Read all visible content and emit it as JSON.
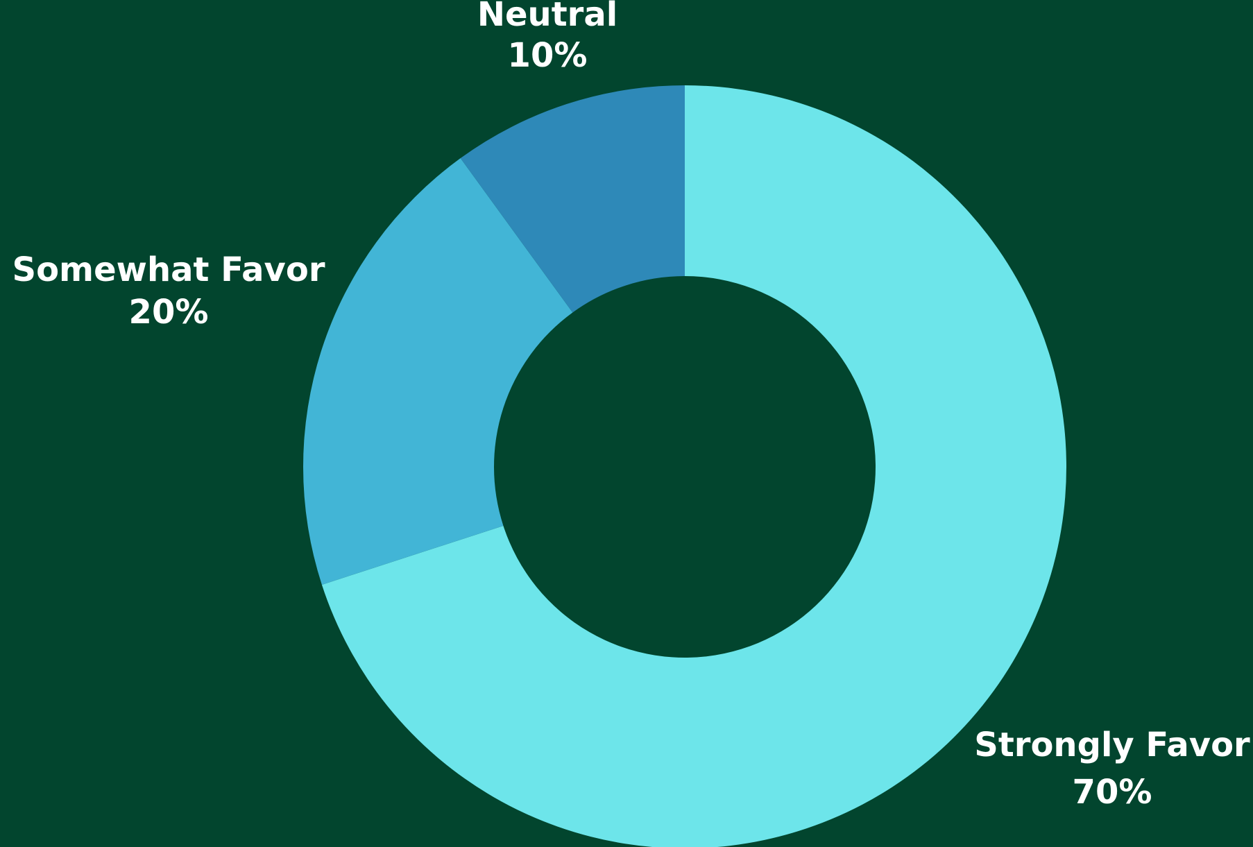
{
  "chart_data": {
    "type": "pie",
    "donut": true,
    "start_angle": "top",
    "direction": "clockwise",
    "background_color": "#02452e",
    "slices": [
      {
        "label": "Strongly Favor",
        "value": 70,
        "value_label": "70%",
        "color": "#6de5ea"
      },
      {
        "label": "Somewhat Favor",
        "value": 20,
        "value_label": "20%",
        "color": "#42b5d6"
      },
      {
        "label": "Neutral",
        "value": 10,
        "value_label": "10%",
        "color": "#2e89b8"
      }
    ]
  }
}
